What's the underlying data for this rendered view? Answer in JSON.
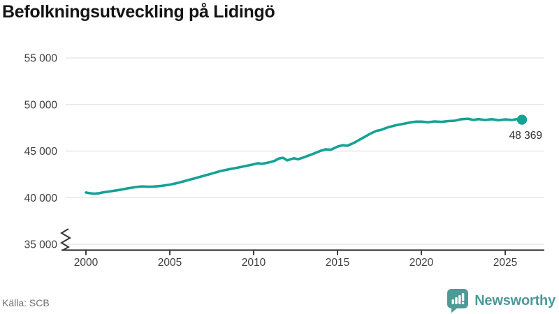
{
  "title": "Befolkningsutveckling på Lidingö",
  "footer": {
    "source": "Källa: SCB",
    "brand": "Newsworthy"
  },
  "colors": {
    "line": "#14a296",
    "title": "#141414",
    "axis": "#3d3d3d",
    "grid": "#e8e8e8",
    "tick_label": "#3f3f3f",
    "end_label": "#2d2d2d",
    "source": "#6d6d76",
    "brand": "#4d9a97"
  },
  "chart_data": {
    "type": "line",
    "title": "Befolkningsutveckling på Lidingö",
    "xlabel": "",
    "ylabel": "",
    "xlim": [
      1998.5,
      2027.3
    ],
    "ylim": [
      35000,
      55000
    ],
    "y_axis_break": true,
    "grid": "horizontal",
    "legend": "none",
    "x_ticks": [
      2000,
      2005,
      2010,
      2015,
      2020,
      2025
    ],
    "y_ticks": [
      35000,
      40000,
      45000,
      50000,
      55000
    ],
    "y_tick_labels": [
      "35 000",
      "40 000",
      "45 000",
      "50 000",
      "55 000"
    ],
    "end_label": "48 369",
    "end_value": 48369,
    "series": [
      {
        "name": "Befolkning",
        "x": [
          2000,
          2000.25,
          2000.5,
          2000.75,
          2001,
          2001.5,
          2002,
          2002.5,
          2003,
          2003.33,
          2003.66,
          2004,
          2004.5,
          2005,
          2005.5,
          2006,
          2006.5,
          2007,
          2007.5,
          2008,
          2008.5,
          2009,
          2009.5,
          2010,
          2010.25,
          2010.5,
          2010.75,
          2011,
          2011.25,
          2011.5,
          2011.75,
          2012,
          2012.4,
          2012.65,
          2013,
          2013.5,
          2014,
          2014.3,
          2014.6,
          2015,
          2015.3,
          2015.6,
          2016,
          2016.4,
          2016.7,
          2017,
          2017.3,
          2017.6,
          2018,
          2018.5,
          2019,
          2019.4,
          2019.7,
          2020,
          2020.4,
          2020.8,
          2021.2,
          2021.6,
          2022,
          2022.4,
          2022.8,
          2023.1,
          2023.4,
          2023.8,
          2024.2,
          2024.6,
          2025,
          2025.4,
          2025.7,
          2026
        ],
        "values": [
          40550,
          40470,
          40430,
          40460,
          40560,
          40690,
          40830,
          41000,
          41140,
          41200,
          41170,
          41190,
          41260,
          41400,
          41590,
          41830,
          42080,
          42330,
          42580,
          42840,
          43040,
          43200,
          43390,
          43580,
          43690,
          43640,
          43720,
          43820,
          43950,
          44200,
          44280,
          44000,
          44230,
          44120,
          44330,
          44670,
          45030,
          45190,
          45140,
          45480,
          45630,
          45580,
          45900,
          46300,
          46600,
          46900,
          47150,
          47280,
          47550,
          47780,
          47950,
          48090,
          48160,
          48160,
          48090,
          48180,
          48130,
          48220,
          48260,
          48420,
          48470,
          48340,
          48430,
          48330,
          48420,
          48310,
          48400,
          48330,
          48430,
          48369
        ]
      }
    ]
  }
}
